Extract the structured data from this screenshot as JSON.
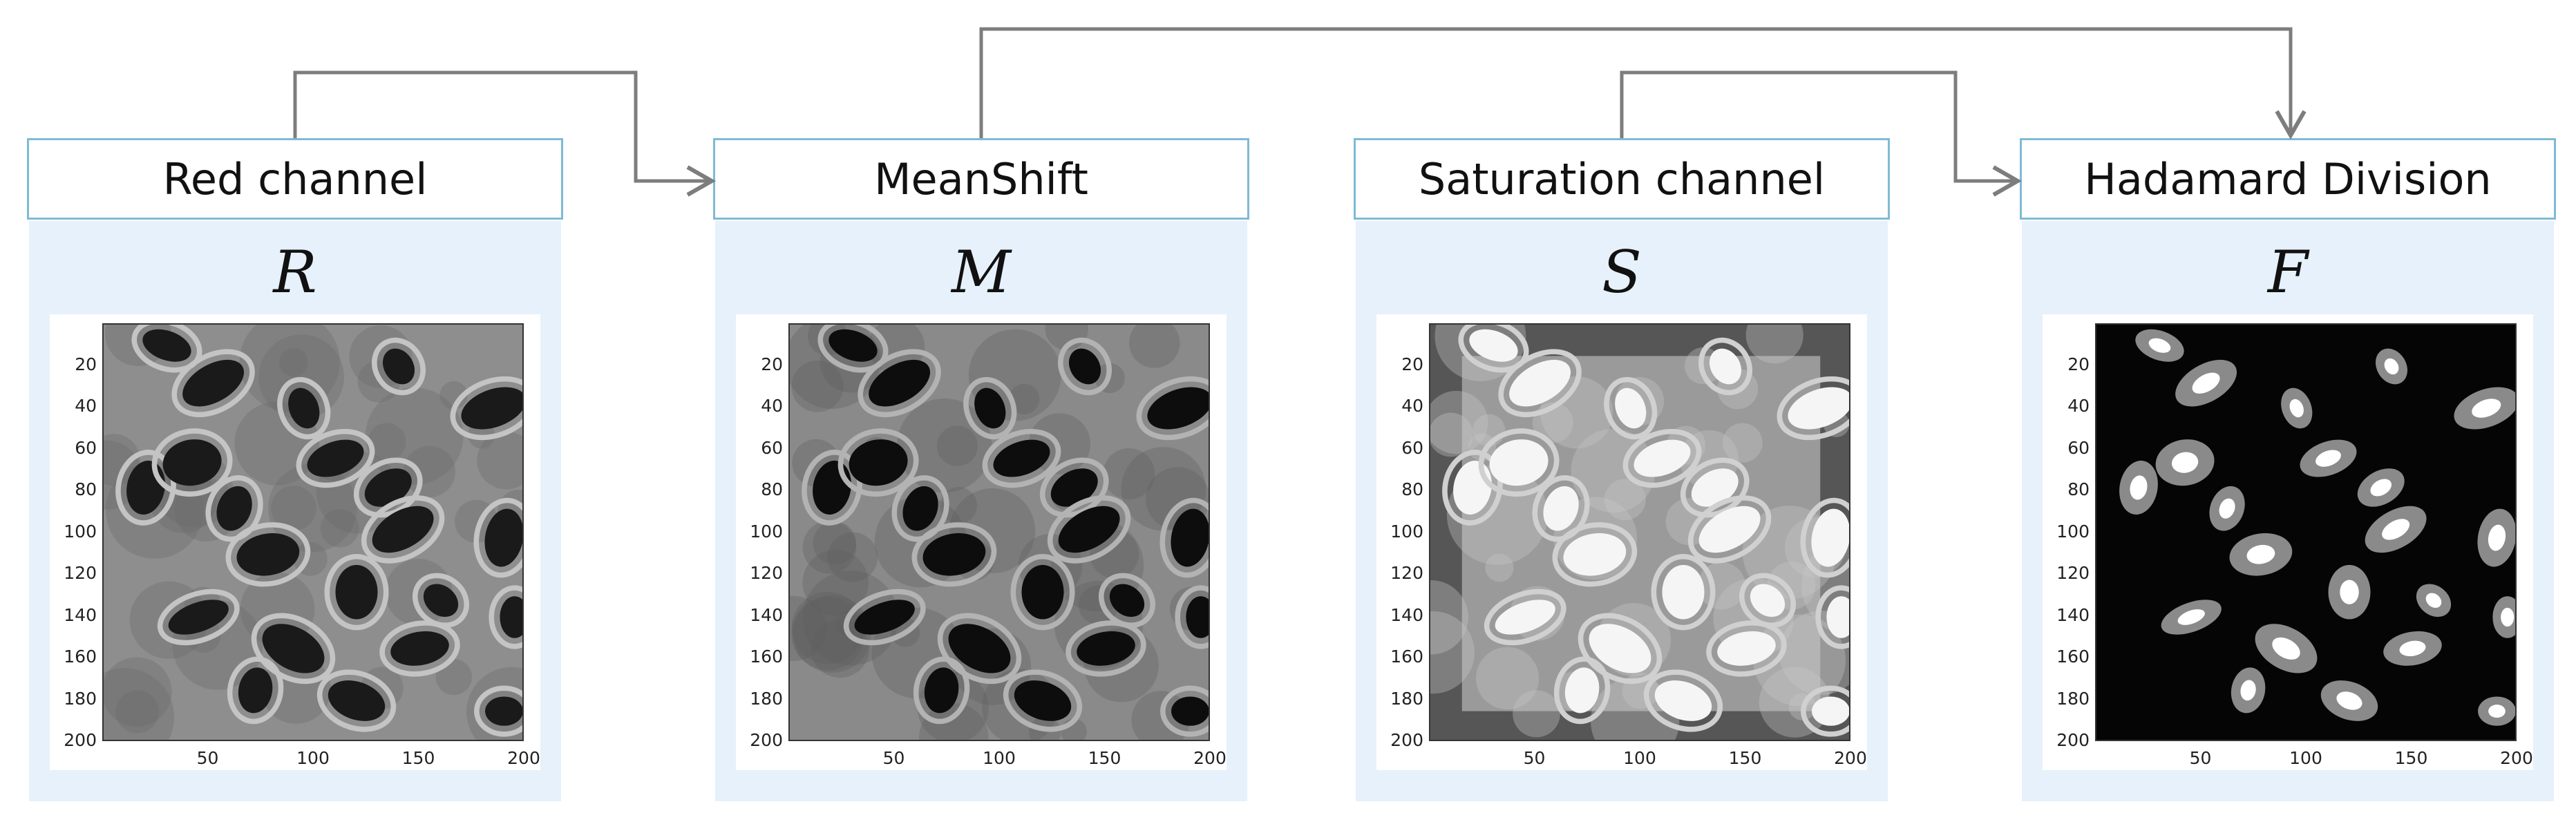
{
  "stages": [
    {
      "title": "Red channel",
      "symbol": "R"
    },
    {
      "title": "MeanShift",
      "symbol": "M"
    },
    {
      "title": "Saturation channel",
      "symbol": "S"
    },
    {
      "title": "Hadamard Division",
      "symbol": "F"
    }
  ],
  "y_ticks": [
    "20",
    "40",
    "60",
    "80",
    "100",
    "120",
    "140",
    "160",
    "180",
    "200"
  ],
  "x_ticks": [
    "50",
    "100",
    "150",
    "200"
  ],
  "colors": {
    "panel_background": "#e6f1fb",
    "box_border": "#7fbad6",
    "arrow": "#7d7d7d"
  }
}
